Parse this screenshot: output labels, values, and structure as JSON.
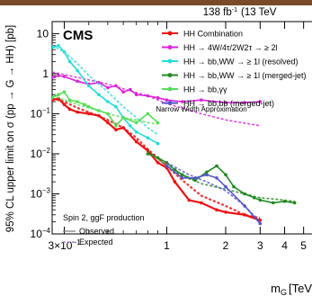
{
  "header": {
    "luminosity": "138 fb",
    "luminosity_sup": "-1",
    "energy": "(13 TeV"
  },
  "top_bar_color": "#7a4a2a",
  "experiment": "CMS",
  "annotation": {
    "production_mode": "Spin 2, ggF production",
    "observed_label": "Observed",
    "expected_label": "Expected",
    "approximation": "Narrow Width Approximation"
  },
  "chart_data": {
    "type": "line",
    "title": "",
    "xlabel": "m",
    "xlabel_sub": "G",
    "xlabel_unit": "[TeV",
    "ylabel": "95% CL upper limit on σ (pp → G → HH) [pb]",
    "xscale": "log",
    "yscale": "log",
    "xlim": [
      0.26,
      6.2
    ],
    "ylim": [
      0.0001,
      20
    ],
    "x_ticks": [
      {
        "value": 0.3,
        "label": "3×10"
      },
      {
        "value": 1,
        "label": "1"
      },
      {
        "value": 2,
        "label": "2"
      },
      {
        "value": 3,
        "label": "3"
      },
      {
        "value": 4,
        "label": "4"
      },
      {
        "value": 5,
        "label": "5"
      },
      {
        "value": 6,
        "label": "6"
      }
    ],
    "x_tick_exp": "−1",
    "y_ticks": [
      {
        "value": 10,
        "base": "10",
        "exp": ""
      },
      {
        "value": 1,
        "base": "1",
        "exp": ""
      },
      {
        "value": 0.1,
        "base": "10",
        "exp": "−1"
      },
      {
        "value": 0.01,
        "base": "10",
        "exp": "−2"
      },
      {
        "value": 0.001,
        "base": "10",
        "exp": "−3"
      },
      {
        "value": 0.0001,
        "base": "10",
        "exp": "−4"
      }
    ],
    "series": [
      {
        "name": "HH Combination",
        "color": "#ee1111",
        "marker": true,
        "width": 2.2,
        "observed": [
          [
            0.26,
            0.22
          ],
          [
            0.28,
            0.24
          ],
          [
            0.3,
            0.17
          ],
          [
            0.32,
            0.13
          ],
          [
            0.35,
            0.11
          ],
          [
            0.4,
            0.1
          ],
          [
            0.45,
            0.09
          ],
          [
            0.5,
            0.06
          ],
          [
            0.55,
            0.04
          ],
          [
            0.6,
            0.045
          ],
          [
            0.7,
            0.02
          ],
          [
            0.8,
            0.012
          ],
          [
            0.9,
            0.006
          ],
          [
            1.0,
            0.0045
          ],
          [
            1.1,
            0.002
          ],
          [
            1.3,
            0.0007
          ],
          [
            1.5,
            0.0006
          ],
          [
            1.8,
            0.0004
          ],
          [
            2.0,
            0.00035
          ],
          [
            2.5,
            0.0003
          ],
          [
            3.0,
            0.00022
          ]
        ],
        "expected": [
          [
            0.26,
            0.24
          ],
          [
            0.3,
            0.2
          ],
          [
            0.35,
            0.14
          ],
          [
            0.4,
            0.11
          ],
          [
            0.5,
            0.07
          ],
          [
            0.6,
            0.045
          ],
          [
            0.7,
            0.025
          ],
          [
            0.8,
            0.013
          ],
          [
            0.9,
            0.008
          ],
          [
            1.0,
            0.005
          ],
          [
            1.2,
            0.0022
          ],
          [
            1.5,
            0.0009
          ],
          [
            2.0,
            0.0005
          ],
          [
            2.5,
            0.0003
          ],
          [
            3.0,
            0.00025
          ]
        ]
      },
      {
        "name": "HH → 4W/4τ/2W2τ → ≥ 2l",
        "color": "#dd22dd",
        "marker": true,
        "width": 1.6,
        "observed": [
          [
            0.26,
            0.8
          ],
          [
            0.28,
            0.9
          ],
          [
            0.3,
            0.85
          ],
          [
            0.35,
            0.65
          ],
          [
            0.4,
            0.55
          ],
          [
            0.45,
            0.6
          ],
          [
            0.5,
            0.45
          ],
          [
            0.55,
            0.5
          ],
          [
            0.6,
            0.35
          ],
          [
            0.65,
            0.4
          ],
          [
            0.7,
            0.3
          ],
          [
            0.8,
            0.28
          ],
          [
            0.9,
            0.25
          ],
          [
            1.0,
            0.22
          ],
          [
            1.2,
            0.2
          ],
          [
            1.5,
            0.22
          ],
          [
            2.0,
            0.19
          ],
          [
            2.5,
            0.19
          ],
          [
            3.0,
            0.2
          ]
        ],
        "expected": [
          [
            0.26,
            1.1
          ],
          [
            0.3,
            0.95
          ],
          [
            0.4,
            0.7
          ],
          [
            0.5,
            0.55
          ],
          [
            0.6,
            0.42
          ],
          [
            0.8,
            0.28
          ],
          [
            1.0,
            0.18
          ],
          [
            1.5,
            0.1
          ],
          [
            2.0,
            0.07
          ],
          [
            3.0,
            0.05
          ]
        ]
      },
      {
        "name": "HH → bb,WW → ≥ 1l (resolved)",
        "color": "#22dddd",
        "marker": true,
        "width": 1.6,
        "observed": [
          [
            0.26,
            4.5
          ],
          [
            0.28,
            5.0
          ],
          [
            0.3,
            3.5
          ],
          [
            0.32,
            2.0
          ],
          [
            0.35,
            1.2
          ],
          [
            0.4,
            0.5
          ],
          [
            0.45,
            0.3
          ],
          [
            0.5,
            0.2
          ],
          [
            0.55,
            0.15
          ],
          [
            0.6,
            0.08
          ],
          [
            0.65,
            0.05
          ],
          [
            0.7,
            0.035
          ],
          [
            0.8,
            0.025
          ],
          [
            0.9,
            0.018
          ]
        ],
        "expected": [
          [
            0.26,
            5.0
          ],
          [
            0.3,
            3.5
          ],
          [
            0.35,
            1.8
          ],
          [
            0.4,
            0.9
          ],
          [
            0.5,
            0.35
          ],
          [
            0.6,
            0.15
          ],
          [
            0.7,
            0.08
          ],
          [
            0.8,
            0.045
          ],
          [
            0.9,
            0.03
          ]
        ]
      },
      {
        "name": "HH → bb,WW → ≥ 1l (merged-jet)",
        "color": "#228822",
        "marker": true,
        "width": 1.6,
        "observed": [
          [
            0.8,
            0.01
          ],
          [
            0.9,
            0.008
          ],
          [
            1.0,
            0.006
          ],
          [
            1.1,
            0.004
          ],
          [
            1.2,
            0.003
          ],
          [
            1.4,
            0.0022
          ],
          [
            1.6,
            0.0035
          ],
          [
            1.8,
            0.005
          ],
          [
            2.0,
            0.003
          ],
          [
            2.2,
            0.0015
          ],
          [
            2.5,
            0.001
          ],
          [
            2.8,
            0.0008
          ],
          [
            3.0,
            0.0007
          ],
          [
            3.5,
            0.0006
          ],
          [
            4.0,
            0.00065
          ],
          [
            4.5,
            0.0006
          ]
        ],
        "expected": [
          [
            0.8,
            0.012
          ],
          [
            1.0,
            0.005
          ],
          [
            1.2,
            0.0028
          ],
          [
            1.5,
            0.0018
          ],
          [
            2.0,
            0.0013
          ],
          [
            2.5,
            0.001
          ],
          [
            3.0,
            0.0008
          ],
          [
            4.0,
            0.0007
          ],
          [
            4.5,
            0.00065
          ]
        ]
      },
      {
        "name": "HH → bb,γγ",
        "color": "#55dd55",
        "marker": true,
        "width": 1.6,
        "observed": [
          [
            0.26,
            0.25
          ],
          [
            0.28,
            0.3
          ],
          [
            0.3,
            0.35
          ],
          [
            0.32,
            0.22
          ],
          [
            0.35,
            0.2
          ],
          [
            0.38,
            0.17
          ],
          [
            0.4,
            0.15
          ],
          [
            0.45,
            0.12
          ],
          [
            0.5,
            0.1
          ],
          [
            0.55,
            0.05
          ],
          [
            0.6,
            0.08
          ],
          [
            0.7,
            0.06
          ],
          [
            0.8,
            0.1
          ],
          [
            0.9,
            0.06
          ]
        ],
        "expected": [
          [
            0.26,
            0.28
          ],
          [
            0.3,
            0.22
          ],
          [
            0.35,
            0.17
          ],
          [
            0.4,
            0.14
          ],
          [
            0.5,
            0.1
          ],
          [
            0.6,
            0.08
          ],
          [
            0.7,
            0.07
          ],
          [
            0.8,
            0.06
          ],
          [
            0.9,
            0.055
          ]
        ]
      },
      {
        "name": "HH → bb,bb (merged-jet)",
        "color": "#5555cc",
        "marker": true,
        "width": 1.6,
        "observed": [
          [
            1.0,
            0.005
          ],
          [
            1.2,
            0.0025
          ],
          [
            1.4,
            0.0025
          ],
          [
            1.6,
            0.003
          ],
          [
            1.8,
            0.0025
          ],
          [
            2.0,
            0.0015
          ],
          [
            2.5,
            0.0005
          ],
          [
            3.0,
            0.00018
          ]
        ],
        "expected": [
          [
            1.0,
            0.006
          ],
          [
            1.3,
            0.003
          ],
          [
            1.6,
            0.002
          ],
          [
            2.0,
            0.0012
          ],
          [
            2.5,
            0.0005
          ],
          [
            3.0,
            0.0002
          ]
        ]
      }
    ]
  }
}
